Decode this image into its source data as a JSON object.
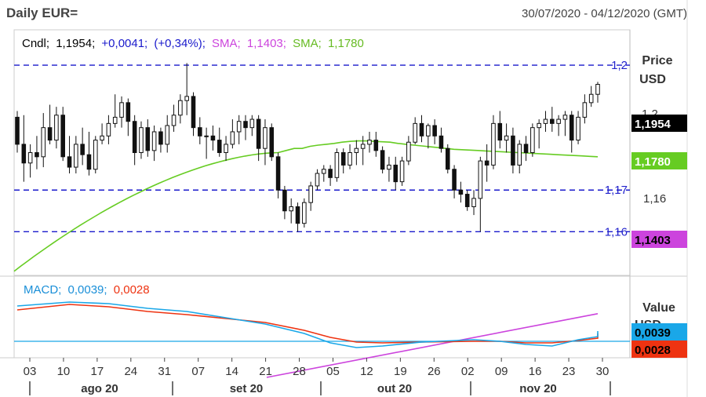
{
  "header": {
    "title": "Daily EUR=",
    "date_range": "30/07/2020 - 04/12/2020 (GMT)"
  },
  "legend": {
    "cndl_label": "Cndl;",
    "cndl_value": "1,1954;",
    "cndl_change": "+0,0041;",
    "cndl_change_pct": "(+0,34%);",
    "sma1_label": "SMA;",
    "sma1_value": "1,1403;",
    "sma2_label": "SMA;",
    "sma2_value": "1,1780"
  },
  "macd_legend": {
    "label": "MACD;",
    "value1": "0,0039;",
    "value2": "0,0028"
  },
  "price_axis": {
    "title_line1": "Price",
    "title_line2": "USD",
    "tick_116": "1,16"
  },
  "value_axis": {
    "title_line1": "Value",
    "title_line2": "USD"
  },
  "levels": [
    {
      "label": "1,2",
      "value": 1.2
    },
    {
      "label": "1,17",
      "value": 1.17
    },
    {
      "label": "1,16",
      "value": 1.16
    }
  ],
  "badges": {
    "last": {
      "label": "1,1954",
      "color": "#000000",
      "text_color": "#ffffff"
    },
    "sma_green": {
      "label": "1,1780",
      "color": "#66cc22",
      "text_color": "#ffffff"
    },
    "sma_purple": {
      "label": "1,1403",
      "color": "#cc44dd",
      "text_color": "#000000"
    },
    "macd_blue": {
      "label": "0,0039",
      "color": "#1aa7e8",
      "text_color": "#000000"
    },
    "macd_red": {
      "label": "0,0028",
      "color": "#ee3311",
      "text_color": "#000000"
    }
  },
  "x_axis": {
    "day_ticks": [
      "03",
      "10",
      "17",
      "24",
      "31",
      "07",
      "14",
      "21",
      "28",
      "05",
      "12",
      "19",
      "26",
      "02",
      "09",
      "16",
      "23",
      "30"
    ],
    "months": [
      "ago 20",
      "set 20",
      "out 20",
      "nov 20"
    ]
  },
  "colors": {
    "level_line": "#1a1acc",
    "candle": "#111111",
    "sma_green": "#66cc22",
    "sma_purple": "#cc44dd",
    "macd": "#1aa7e8",
    "signal": "#ee3311",
    "zero_line": "#1aa7e8",
    "cndl_text": "#000000",
    "change_text": "#1a1acc",
    "sma1_text": "#cc44dd",
    "sma2_text": "#66bb22"
  },
  "chart_data": [
    {
      "type": "candlestick",
      "series_name": "Cndl",
      "ylim": [
        1.1495,
        1.2085
      ],
      "candles": [
        [
          1.1875,
          1.189,
          1.179,
          1.181
        ],
        [
          1.181,
          1.188,
          1.172,
          1.1765
        ],
        [
          1.1765,
          1.181,
          1.173,
          1.179
        ],
        [
          1.179,
          1.183,
          1.175,
          1.178
        ],
        [
          1.178,
          1.1885,
          1.1755,
          1.185
        ],
        [
          1.185,
          1.1905,
          1.181,
          1.182
        ],
        [
          1.182,
          1.19,
          1.18,
          1.188
        ],
        [
          1.188,
          1.19,
          1.177,
          1.178
        ],
        [
          1.178,
          1.183,
          1.174,
          1.1755
        ],
        [
          1.1755,
          1.183,
          1.174,
          1.181
        ],
        [
          1.181,
          1.185,
          1.176,
          1.1785
        ],
        [
          1.1785,
          1.184,
          1.1735,
          1.175
        ],
        [
          1.175,
          1.183,
          1.174,
          1.182
        ],
        [
          1.182,
          1.186,
          1.181,
          1.183
        ],
        [
          1.183,
          1.188,
          1.181,
          1.186
        ],
        [
          1.186,
          1.193,
          1.185,
          1.1875
        ],
        [
          1.1875,
          1.1925,
          1.185,
          1.191
        ],
        [
          1.191,
          1.192,
          1.183,
          1.1865
        ],
        [
          1.1865,
          1.188,
          1.176,
          1.179
        ],
        [
          1.179,
          1.1865,
          1.1775,
          1.185
        ],
        [
          1.185,
          1.187,
          1.178,
          1.1795
        ],
        [
          1.1795,
          1.1855,
          1.177,
          1.184
        ],
        [
          1.184,
          1.185,
          1.179,
          1.181
        ],
        [
          1.181,
          1.188,
          1.179,
          1.1855
        ],
        [
          1.1855,
          1.1905,
          1.184,
          1.188
        ],
        [
          1.188,
          1.193,
          1.186,
          1.1915
        ],
        [
          1.1915,
          1.2005,
          1.188,
          1.1925
        ],
        [
          1.1925,
          1.1935,
          1.183,
          1.185
        ],
        [
          1.185,
          1.1875,
          1.181,
          1.183
        ],
        [
          1.183,
          1.185,
          1.1775,
          1.183
        ],
        [
          1.183,
          1.1855,
          1.1795,
          1.182
        ],
        [
          1.182,
          1.185,
          1.178,
          1.179
        ],
        [
          1.179,
          1.183,
          1.177,
          1.181
        ],
        [
          1.181,
          1.187,
          1.18,
          1.184
        ],
        [
          1.184,
          1.188,
          1.181,
          1.1865
        ],
        [
          1.1865,
          1.188,
          1.182,
          1.185
        ],
        [
          1.185,
          1.188,
          1.183,
          1.187
        ],
        [
          1.187,
          1.188,
          1.177,
          1.18
        ],
        [
          1.18,
          1.187,
          1.176,
          1.185
        ],
        [
          1.185,
          1.186,
          1.177,
          1.178
        ],
        [
          1.178,
          1.179,
          1.168,
          1.17
        ],
        [
          1.17,
          1.171,
          1.163,
          1.165
        ],
        [
          1.165,
          1.168,
          1.162,
          1.166
        ],
        [
          1.166,
          1.167,
          1.16,
          1.162
        ],
        [
          1.162,
          1.168,
          1.161,
          1.167
        ],
        [
          1.167,
          1.172,
          1.165,
          1.171
        ],
        [
          1.171,
          1.175,
          1.17,
          1.174
        ],
        [
          1.174,
          1.176,
          1.172,
          1.175
        ],
        [
          1.175,
          1.176,
          1.171,
          1.173
        ],
        [
          1.173,
          1.18,
          1.172,
          1.179
        ],
        [
          1.179,
          1.18,
          1.174,
          1.176
        ],
        [
          1.176,
          1.181,
          1.175,
          1.179
        ],
        [
          1.179,
          1.182,
          1.176,
          1.18
        ],
        [
          1.18,
          1.183,
          1.176,
          1.181
        ],
        [
          1.181,
          1.184,
          1.179,
          1.182
        ],
        [
          1.182,
          1.184,
          1.178,
          1.1795
        ],
        [
          1.1795,
          1.1805,
          1.174,
          1.175
        ],
        [
          1.175,
          1.178,
          1.172,
          1.176
        ],
        [
          1.176,
          1.178,
          1.17,
          1.172
        ],
        [
          1.172,
          1.178,
          1.171,
          1.177
        ],
        [
          1.177,
          1.183,
          1.176,
          1.1815
        ],
        [
          1.1815,
          1.1875,
          1.181,
          1.186
        ],
        [
          1.186,
          1.188,
          1.1815,
          1.183
        ],
        [
          1.183,
          1.186,
          1.18,
          1.1855
        ],
        [
          1.1855,
          1.187,
          1.181,
          1.183
        ],
        [
          1.183,
          1.185,
          1.179,
          1.18
        ],
        [
          1.18,
          1.181,
          1.174,
          1.175
        ],
        [
          1.175,
          1.176,
          1.168,
          1.17
        ],
        [
          1.17,
          1.172,
          1.167,
          1.169
        ],
        [
          1.169,
          1.17,
          1.165,
          1.166
        ],
        [
          1.166,
          1.17,
          1.164,
          1.168
        ],
        [
          1.168,
          1.178,
          1.16,
          1.177
        ],
        [
          1.177,
          1.181,
          1.172,
          1.176
        ],
        [
          1.176,
          1.188,
          1.175,
          1.186
        ],
        [
          1.186,
          1.189,
          1.18,
          1.182
        ],
        [
          1.182,
          1.186,
          1.179,
          1.183
        ],
        [
          1.183,
          1.185,
          1.174,
          1.176
        ],
        [
          1.176,
          1.182,
          1.174,
          1.181
        ],
        [
          1.181,
          1.183,
          1.177,
          1.179
        ],
        [
          1.179,
          1.186,
          1.178,
          1.185
        ],
        [
          1.185,
          1.187,
          1.18,
          1.186
        ],
        [
          1.186,
          1.189,
          1.184,
          1.187
        ],
        [
          1.187,
          1.19,
          1.184,
          1.186
        ],
        [
          1.186,
          1.188,
          1.183,
          1.187
        ],
        [
          1.187,
          1.189,
          1.183,
          1.188
        ],
        [
          1.188,
          1.189,
          1.179,
          1.182
        ],
        [
          1.182,
          1.189,
          1.181,
          1.1875
        ],
        [
          1.1875,
          1.193,
          1.186,
          1.191
        ],
        [
          1.191,
          1.195,
          1.19,
          1.193
        ],
        [
          1.193,
          1.196,
          1.191,
          1.1954
        ]
      ],
      "sma_fast": {
        "name": "SMA",
        "values": [
          1.179,
          1.1795,
          1.18,
          1.18,
          1.1805,
          1.1808,
          1.181,
          1.1812,
          1.1815,
          1.1817,
          1.1818,
          1.1818,
          1.1817,
          1.1816,
          1.1815,
          1.1812,
          1.181,
          1.1808,
          1.1806,
          1.1804,
          1.1802,
          1.18,
          1.1798,
          1.1797,
          1.1796,
          1.1795,
          1.1794,
          1.1793,
          1.1792,
          1.1791,
          1.179,
          1.1789,
          1.1788,
          1.1787,
          1.1786,
          1.1785,
          1.1784,
          1.1783,
          1.1782,
          1.1781,
          1.178
        ]
      },
      "sma_slow_range": [
        1.125,
        1.1403
      ],
      "level_lines": [
        1.2,
        1.17,
        1.16
      ]
    },
    {
      "type": "line",
      "title": "MACD",
      "series": [
        {
          "name": "MACD",
          "last": 0.0039
        },
        {
          "name": "signal",
          "last": 0.0028
        }
      ]
    }
  ]
}
